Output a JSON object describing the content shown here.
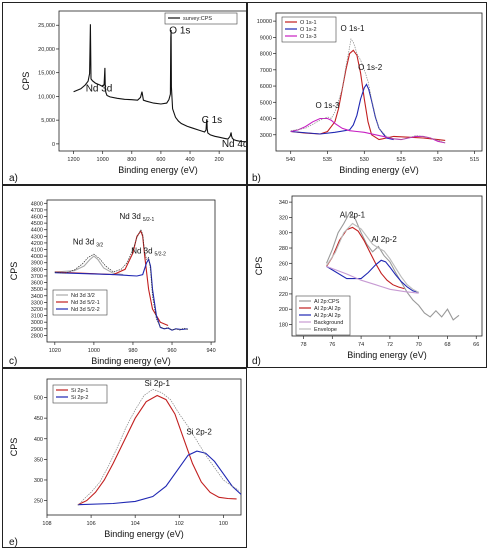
{
  "chart_data": [
    {
      "id": "a",
      "panel_label": "a)",
      "type": "line",
      "xlabel": "Binding energy (eV)",
      "ylabel": "CPS",
      "xlim": [
        1300,
        -60
      ],
      "ylim": [
        -1500,
        28000
      ],
      "x_ticks": [
        1200,
        1000,
        800,
        600,
        400,
        200,
        0
      ],
      "y_ticks": [
        0,
        5000,
        10000,
        15000,
        20000,
        25000
      ],
      "y_tick_labels": [
        "0",
        "5,000",
        "10,000",
        "15,000",
        "20,000",
        "25,000"
      ],
      "legend": [
        "survey:CPS"
      ],
      "legend_position": "top-right",
      "annotations": [
        {
          "text": "O 1s",
          "x": 470,
          "y": 23300
        },
        {
          "text": "Nd 3d",
          "x": 1025,
          "y": 11000
        },
        {
          "text": "C 1s",
          "x": 250,
          "y": 4400
        },
        {
          "text": "Nd 4d",
          "x": 90,
          "y": -700
        }
      ],
      "series": [
        {
          "name": "survey:CPS",
          "x": [
            1200,
            1150,
            1120,
            1100,
            1090,
            1084,
            1080,
            1070,
            1050,
            1020,
            1000,
            990,
            985,
            982,
            978,
            970,
            950,
            900,
            850,
            800,
            760,
            740,
            730,
            720,
            700,
            650,
            600,
            560,
            545,
            535,
            532,
            530,
            528,
            520,
            500,
            480,
            460,
            420,
            380,
            340,
            300,
            290,
            286,
            284,
            282,
            278,
            260,
            230,
            200,
            170,
            140,
            125,
            118,
            115,
            110,
            100,
            80,
            50,
            20,
            0
          ],
          "y": [
            11000,
            11600,
            12400,
            13200,
            14800,
            25200,
            13700,
            13300,
            12800,
            12400,
            12100,
            12500,
            16000,
            11500,
            10800,
            10200,
            9900,
            9600,
            9400,
            9300,
            9200,
            9800,
            11000,
            9200,
            9000,
            8600,
            8400,
            8600,
            9300,
            10500,
            22400,
            24000,
            12000,
            7400,
            5600,
            4800,
            4300,
            3700,
            3300,
            2900,
            2500,
            2900,
            4800,
            5200,
            3200,
            2300,
            1900,
            1600,
            1400,
            1200,
            1000,
            1600,
            2400,
            1700,
            1200,
            900,
            700,
            500,
            450,
            420
          ]
        }
      ]
    },
    {
      "id": "b",
      "panel_label": "b)",
      "type": "line",
      "xlabel": "Binding energy (eV)",
      "ylabel": "CPS",
      "xlim": [
        542,
        514
      ],
      "ylim": [
        2000,
        10500
      ],
      "x_ticks": [
        540,
        535,
        530,
        525,
        520,
        515
      ],
      "y_ticks": [
        3000,
        4000,
        5000,
        6000,
        7000,
        8000,
        9000,
        10000
      ],
      "legend": [
        "O 1s-1",
        "O 1s-2",
        "O 1s-3"
      ],
      "legend_position": "top-left",
      "annotations": [
        {
          "text": "O 1s-1",
          "x": 531.6,
          "y": 9400
        },
        {
          "text": "O 1s-2",
          "x": 529.2,
          "y": 7000
        },
        {
          "text": "O 1s-3",
          "x": 535.0,
          "y": 4650
        }
      ],
      "series": [
        {
          "name": "O 1s-1",
          "x": [
            540,
            538,
            536,
            535,
            534,
            533.5,
            533,
            532.5,
            532,
            531.5,
            531,
            530.5,
            530,
            529.5,
            529,
            528,
            527,
            526,
            524,
            522,
            520,
            519
          ],
          "y": [
            3200,
            3100,
            3050,
            3200,
            3800,
            4600,
            5800,
            7000,
            8000,
            8200,
            7900,
            6800,
            5200,
            3800,
            3000,
            2700,
            2800,
            2900,
            2850,
            2800,
            2700,
            2650
          ]
        },
        {
          "name": "O 1s-2",
          "x": [
            540,
            536,
            534,
            532,
            531.5,
            531,
            530.5,
            530,
            529.7,
            529.4,
            529,
            528.5,
            528,
            527,
            526
          ],
          "y": [
            3200,
            3050,
            3150,
            3300,
            3600,
            4200,
            5200,
            5900,
            6100,
            5800,
            5100,
            4100,
            3400,
            2800,
            2700
          ]
        },
        {
          "name": "O 1s-3",
          "x": [
            540,
            539,
            538,
            537,
            536,
            535,
            534.5,
            534,
            533,
            532,
            531,
            530,
            526,
            525,
            524,
            523,
            522,
            521,
            520,
            519
          ],
          "y": [
            3200,
            3300,
            3500,
            3800,
            4000,
            4000,
            3900,
            3700,
            3400,
            3250,
            3200,
            3150,
            2750,
            2700,
            2800,
            2900,
            2900,
            2800,
            2600,
            2500
          ]
        },
        {
          "name": "data",
          "x": [
            540,
            538,
            536,
            535,
            534.5,
            534,
            533,
            532.5,
            532,
            531.8,
            531.5,
            531.2,
            531,
            530.5,
            530,
            529.5,
            529,
            528.5,
            528,
            527,
            526,
            525,
            524,
            523,
            522,
            521,
            520,
            519
          ],
          "y": [
            3250,
            3400,
            3900,
            4100,
            4000,
            4400,
            5800,
            7200,
            8400,
            8900,
            8700,
            8300,
            8000,
            7600,
            7000,
            6300,
            5200,
            4200,
            3400,
            2900,
            2750,
            2700,
            2800,
            2950,
            2900,
            2800,
            2650,
            2500
          ]
        }
      ]
    },
    {
      "id": "c",
      "panel_label": "c)",
      "type": "line",
      "xlabel": "Binding energy (eV)",
      "ylabel": "CPS",
      "xlim": [
        1024,
        938
      ],
      "ylim": [
        2700,
        4850
      ],
      "x_ticks": [
        1020,
        1000,
        980,
        960,
        940
      ],
      "y_ticks": [
        2800,
        2900,
        3000,
        3100,
        3200,
        3300,
        3400,
        3500,
        3600,
        3700,
        3800,
        3900,
        4000,
        4100,
        4200,
        4300,
        4400,
        4500,
        4600,
        4700,
        4800
      ],
      "legend": [
        "Nd 3d 3/2",
        "Nd 3d 5/2-1",
        "Nd 3d 5/2-2"
      ],
      "legend_position": "bottom-left",
      "annotations": [
        {
          "text": "Nd 3d",
          "sub": "3/2",
          "x": 1003,
          "y": 4180
        },
        {
          "text": "Nd 3d",
          "sub": "5/2-1",
          "x": 978,
          "y": 4560
        },
        {
          "text": "Nd 3d",
          "sub": "5/2-2",
          "x": 972,
          "y": 4040
        }
      ],
      "series": [
        {
          "name": "Nd 3d 3/2",
          "x": [
            1020,
            1010,
            1005,
            1002,
            1000,
            998,
            995,
            990,
            985
          ],
          "y": [
            3760,
            3780,
            3850,
            3950,
            4000,
            3950,
            3820,
            3740,
            3720
          ]
        },
        {
          "name": "Nd 3d 5/2-1",
          "x": [
            1020,
            990,
            984,
            980,
            978,
            976,
            975,
            974,
            972,
            970,
            966,
            962
          ],
          "y": [
            3760,
            3720,
            3800,
            4050,
            4300,
            4380,
            4300,
            4000,
            3500,
            3200,
            3000,
            2950
          ]
        },
        {
          "name": "Nd 3d 5/2-2",
          "x": [
            1020,
            990,
            978,
            975,
            973,
            972,
            971,
            970,
            968,
            966,
            964,
            962,
            960,
            958,
            955,
            952
          ],
          "y": [
            3750,
            3720,
            3700,
            3720,
            3900,
            3950,
            3850,
            3500,
            3100,
            2920,
            2900,
            2910,
            2880,
            2900,
            2890,
            2900
          ]
        },
        {
          "name": "data",
          "x": [
            1020,
            1015,
            1010,
            1006,
            1003,
            1000,
            997,
            994,
            990,
            986,
            983,
            980,
            978,
            976,
            975,
            974,
            973,
            972,
            971,
            970,
            968,
            966,
            964,
            962,
            960,
            958,
            956,
            954,
            952
          ],
          "y": [
            3760,
            3740,
            3790,
            3880,
            3980,
            4030,
            3960,
            3850,
            3760,
            3800,
            3900,
            4100,
            4280,
            4400,
            4330,
            4050,
            3950,
            3980,
            3800,
            3400,
            3050,
            2930,
            2900,
            2920,
            2880,
            2900,
            2880,
            2910,
            2890
          ]
        }
      ]
    },
    {
      "id": "d",
      "panel_label": "d)",
      "type": "line",
      "xlabel": "Binding energy (eV)",
      "ylabel": "CPS",
      "xlim": [
        78.8,
        65.6
      ],
      "ylim": [
        165,
        348
      ],
      "x_ticks": [
        78,
        76,
        74,
        72,
        70,
        68,
        66
      ],
      "y_ticks": [
        180,
        200,
        220,
        240,
        260,
        280,
        300,
        320,
        340
      ],
      "legend": [
        "Al 2p:CPS",
        "Al 2p:Al 2p",
        "Al 2p:Al 2p",
        "Background",
        "Envelope"
      ],
      "legend_position": "bottom-left",
      "annotations": [
        {
          "text": "Al 2p-1",
          "x": 74.6,
          "y": 320
        },
        {
          "text": "Al 2p-2",
          "x": 72.4,
          "y": 288
        }
      ],
      "series": [
        {
          "name": "Al 2p:CPS",
          "x": [
            76.4,
            76.0,
            75.6,
            75.2,
            74.8,
            74.4,
            74.0,
            73.6,
            73.2,
            72.8,
            72.4,
            72.0,
            71.6,
            71.2,
            70.8,
            70.4,
            70.0,
            69.6,
            69.2,
            68.8,
            68.4,
            68.0,
            67.6,
            67.2
          ],
          "y": [
            260,
            278,
            300,
            312,
            326,
            318,
            300,
            285,
            275,
            282,
            270,
            262,
            248,
            235,
            222,
            212,
            205,
            195,
            190,
            198,
            190,
            200,
            186,
            192
          ]
        },
        {
          "name": "Al 2p:Al 2p",
          "x": [
            76.4,
            76.0,
            75.5,
            75.0,
            74.6,
            74.2,
            73.8,
            73.4,
            73.0,
            72.6,
            72.2,
            71.8,
            71.4,
            71.0
          ],
          "y": [
            256,
            268,
            290,
            304,
            307,
            302,
            290,
            275,
            260,
            247,
            238,
            232,
            229,
            227
          ]
        },
        {
          "name": "Al 2p:Al 2p",
          "x": [
            76.4,
            75.0,
            74.0,
            73.5,
            73.0,
            72.6,
            72.3,
            72.0,
            71.6,
            71.2,
            70.8,
            70.4,
            70.0
          ],
          "y": [
            256,
            240,
            240,
            248,
            258,
            264,
            262,
            255,
            245,
            236,
            229,
            224,
            222
          ]
        },
        {
          "name": "Background",
          "x": [
            76.4,
            75.0,
            74.0,
            73.0,
            72.0,
            71.0,
            70.0
          ],
          "y": [
            256,
            246,
            238,
            232,
            226,
            223,
            221
          ]
        },
        {
          "name": "Envelope",
          "x": [
            76.4,
            75.8,
            75.2,
            74.6,
            74.0,
            73.6,
            73.2,
            72.8,
            72.4,
            72.0,
            71.6,
            71.2,
            70.8,
            70.4,
            70.0
          ],
          "y": [
            257,
            274,
            300,
            312,
            305,
            295,
            285,
            280,
            276,
            266,
            254,
            242,
            232,
            226,
            222
          ]
        }
      ]
    },
    {
      "id": "e",
      "panel_label": "e)",
      "type": "line",
      "xlabel": "Binding energy (eV)",
      "ylabel": "CPS",
      "xlim": [
        108,
        99.2
      ],
      "ylim": [
        215,
        545
      ],
      "x_ticks": [
        108,
        106,
        104,
        102,
        100
      ],
      "y_ticks": [
        250,
        300,
        350,
        400,
        450,
        500
      ],
      "legend": [
        "Si 2p-1",
        "Si 2p-2"
      ],
      "legend_position": "top-left",
      "annotations": [
        {
          "text": "Si 2p-1",
          "x": 103.0,
          "y": 528
        },
        {
          "text": "Si 2p-2",
          "x": 101.1,
          "y": 410
        }
      ],
      "series": [
        {
          "name": "Si 2p-1",
          "x": [
            106.6,
            106.2,
            105.8,
            105.4,
            105.0,
            104.5,
            104.0,
            103.5,
            103.0,
            102.6,
            102.2,
            101.8,
            101.4,
            101.0,
            100.6,
            100.2,
            99.8,
            99.4
          ],
          "y": [
            240,
            250,
            270,
            300,
            340,
            395,
            450,
            490,
            505,
            495,
            460,
            400,
            340,
            295,
            270,
            258,
            255,
            254
          ]
        },
        {
          "name": "Si 2p-2",
          "x": [
            106.6,
            105.0,
            104.0,
            103.2,
            102.6,
            102.0,
            101.6,
            101.2,
            100.8,
            100.4,
            100.0,
            99.6,
            99.2
          ],
          "y": [
            240,
            243,
            248,
            260,
            285,
            330,
            360,
            370,
            365,
            345,
            315,
            285,
            265
          ]
        },
        {
          "name": "data",
          "x": [
            106.6,
            106.3,
            106.0,
            105.6,
            105.2,
            104.8,
            104.4,
            104.0,
            103.6,
            103.2,
            102.8,
            102.4,
            102.0,
            101.6,
            101.2,
            100.8,
            100.4,
            100.0,
            99.6,
            99.3
          ],
          "y": [
            238,
            255,
            270,
            295,
            335,
            380,
            430,
            470,
            505,
            520,
            512,
            495,
            460,
            430,
            395,
            360,
            330,
            300,
            285,
            275
          ]
        }
      ]
    }
  ]
}
